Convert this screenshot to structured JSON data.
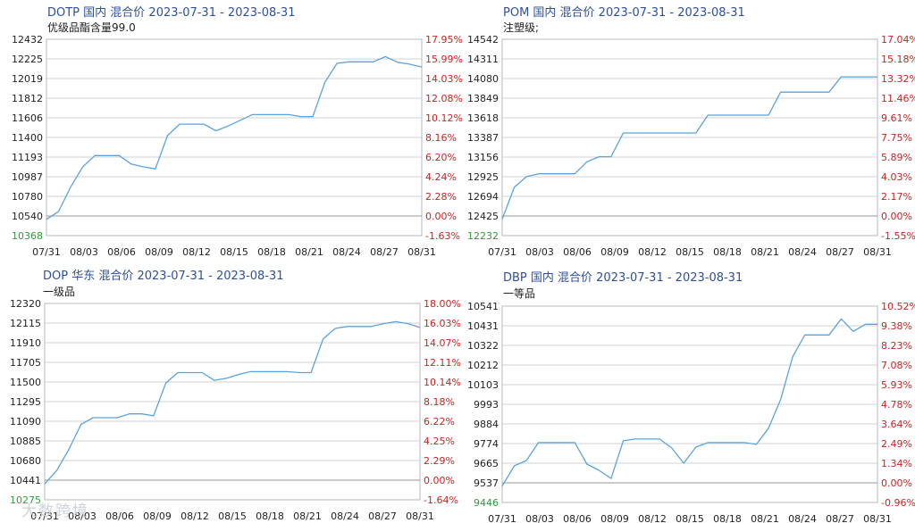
{
  "colors": {
    "line": "#5ba3dc",
    "left_axis": "#222222",
    "right_axis": "#cc2222",
    "base_left": "#2e9b3e",
    "grid": "#d0d0d0",
    "frame": "#b8b8b8",
    "baseline": "#999999",
    "title": "#2e4f9a"
  },
  "watermark": "大数跨境",
  "chart_data": [
    {
      "type": "line",
      "title": "DOTP 国内 混合价 2023-07-31 - 2023-08-31",
      "subtitle": "优级品酯含量99.0",
      "x_ticks": [
        "07/31",
        "08/03",
        "08/06",
        "08/09",
        "08/12",
        "08/15",
        "08/18",
        "08/21",
        "08/24",
        "08/27",
        "08/31"
      ],
      "y_left_ticks": [
        "12432",
        "12225",
        "12019",
        "11812",
        "11606",
        "11400",
        "11193",
        "10987",
        "10780",
        "10540",
        "10368"
      ],
      "y_right_ticks": [
        "17.95%",
        "15.99%",
        "14.03%",
        "12.08%",
        "10.12%",
        "8.16%",
        "6.20%",
        "4.24%",
        "2.28%",
        "0.00%",
        "-1.63%"
      ],
      "ylim": [
        10368,
        12432
      ],
      "base_value": 10540,
      "x": [
        "07/31",
        "08/01",
        "08/02",
        "08/03",
        "08/04",
        "08/05",
        "08/06",
        "08/07",
        "08/08",
        "08/09",
        "08/10",
        "08/11",
        "08/12",
        "08/13",
        "08/14",
        "08/15",
        "08/16",
        "08/17",
        "08/18",
        "08/19",
        "08/20",
        "08/21",
        "08/22",
        "08/23",
        "08/24",
        "08/25",
        "08/26",
        "08/27",
        "08/28",
        "08/29",
        "08/30",
        "08/31"
      ],
      "values": [
        10540,
        10620,
        10880,
        11090,
        11210,
        11210,
        11210,
        11120,
        11090,
        11070,
        11420,
        11540,
        11540,
        11540,
        11470,
        11520,
        11580,
        11640,
        11640,
        11640,
        11640,
        11620,
        11620,
        11980,
        12180,
        12195,
        12195,
        12195,
        12250,
        12190,
        12170,
        12140
      ]
    },
    {
      "type": "line",
      "title": "POM 国内 混合价 2023-07-31 - 2023-08-31",
      "subtitle": "注塑级;",
      "x_ticks": [
        "07/31",
        "08/03",
        "08/06",
        "08/09",
        "08/12",
        "08/15",
        "08/18",
        "08/21",
        "08/24",
        "08/27",
        "08/31"
      ],
      "y_left_ticks": [
        "14542",
        "14311",
        "14080",
        "13849",
        "13618",
        "13387",
        "13156",
        "12925",
        "12694",
        "12425",
        "12232"
      ],
      "y_right_ticks": [
        "17.04%",
        "15.18%",
        "13.32%",
        "11.46%",
        "9.61%",
        "7.75%",
        "5.89%",
        "4.03%",
        "2.17%",
        "0.00%",
        "-1.55%"
      ],
      "ylim": [
        12232,
        14542
      ],
      "base_value": 12425,
      "x": [
        "07/31",
        "08/01",
        "08/02",
        "08/03",
        "08/04",
        "08/05",
        "08/06",
        "08/07",
        "08/08",
        "08/09",
        "08/10",
        "08/11",
        "08/12",
        "08/13",
        "08/14",
        "08/15",
        "08/16",
        "08/17",
        "08/18",
        "08/19",
        "08/20",
        "08/21",
        "08/22",
        "08/23",
        "08/24",
        "08/25",
        "08/26",
        "08/27",
        "08/28",
        "08/29",
        "08/30",
        "08/31"
      ],
      "values": [
        12425,
        12800,
        12925,
        12960,
        12960,
        12960,
        12960,
        13100,
        13160,
        13160,
        13440,
        13440,
        13440,
        13440,
        13440,
        13440,
        13440,
        13650,
        13650,
        13650,
        13650,
        13650,
        13650,
        13920,
        13920,
        13920,
        13920,
        13920,
        14100,
        14100,
        14100,
        14100
      ]
    },
    {
      "type": "line",
      "title": "DOP 华东 混合价 2023-07-31 - 2023-08-31",
      "subtitle": "一级品",
      "x_ticks": [
        "07/31",
        "08/03",
        "08/06",
        "08/09",
        "08/12",
        "08/15",
        "08/18",
        "08/21",
        "08/24",
        "08/27",
        "08/31"
      ],
      "y_left_ticks": [
        "12320",
        "12115",
        "11910",
        "11705",
        "11500",
        "11295",
        "11090",
        "10885",
        "10680",
        "10441",
        "10275"
      ],
      "y_right_ticks": [
        "18.00%",
        "16.03%",
        "14.07%",
        "12.11%",
        "10.14%",
        "8.18%",
        "6.22%",
        "4.25%",
        "2.29%",
        "0.00%",
        "-1.64%"
      ],
      "ylim": [
        10275,
        12320
      ],
      "base_value": 10441,
      "x": [
        "07/31",
        "08/01",
        "08/02",
        "08/03",
        "08/04",
        "08/05",
        "08/06",
        "08/07",
        "08/08",
        "08/09",
        "08/10",
        "08/11",
        "08/12",
        "08/13",
        "08/14",
        "08/15",
        "08/16",
        "08/17",
        "08/18",
        "08/19",
        "08/20",
        "08/21",
        "08/22",
        "08/23",
        "08/24",
        "08/25",
        "08/26",
        "08/27",
        "08/28",
        "08/29",
        "08/30",
        "08/31"
      ],
      "values": [
        10441,
        10580,
        10800,
        11060,
        11130,
        11130,
        11130,
        11170,
        11170,
        11150,
        11490,
        11600,
        11600,
        11600,
        11520,
        11540,
        11580,
        11610,
        11610,
        11610,
        11610,
        11600,
        11600,
        11950,
        12060,
        12080,
        12080,
        12080,
        12110,
        12130,
        12110,
        12070
      ]
    },
    {
      "type": "line",
      "title": "DBP 国内 混合价 2023-07-31 - 2023-08-31",
      "subtitle": "一等品",
      "x_ticks": [
        "07/31",
        "08/03",
        "08/06",
        "08/09",
        "08/12",
        "08/15",
        "08/18",
        "08/21",
        "08/24",
        "08/27",
        "08/31"
      ],
      "y_left_ticks": [
        "10541",
        "10431",
        "10322",
        "10212",
        "10103",
        "9993",
        "9884",
        "9774",
        "9665",
        "9537",
        "9446"
      ],
      "y_right_ticks": [
        "10.52%",
        "9.38%",
        "8.23%",
        "7.08%",
        "5.93%",
        "4.78%",
        "3.64%",
        "2.49%",
        "1.34%",
        "0.00%",
        "-0.96%"
      ],
      "ylim": [
        9446,
        10541
      ],
      "base_value": 9537,
      "x": [
        "07/31",
        "08/01",
        "08/02",
        "08/03",
        "08/04",
        "08/05",
        "08/06",
        "08/07",
        "08/08",
        "08/09",
        "08/10",
        "08/11",
        "08/12",
        "08/13",
        "08/14",
        "08/15",
        "08/16",
        "08/17",
        "08/18",
        "08/19",
        "08/20",
        "08/21",
        "08/22",
        "08/23",
        "08/24",
        "08/25",
        "08/26",
        "08/27",
        "08/28",
        "08/29",
        "08/30",
        "08/31"
      ],
      "values": [
        9537,
        9650,
        9680,
        9780,
        9780,
        9780,
        9780,
        9660,
        9625,
        9580,
        9790,
        9800,
        9800,
        9800,
        9750,
        9665,
        9755,
        9780,
        9780,
        9780,
        9780,
        9770,
        9860,
        10020,
        10260,
        10380,
        10380,
        10380,
        10470,
        10400,
        10440,
        10440
      ]
    }
  ]
}
